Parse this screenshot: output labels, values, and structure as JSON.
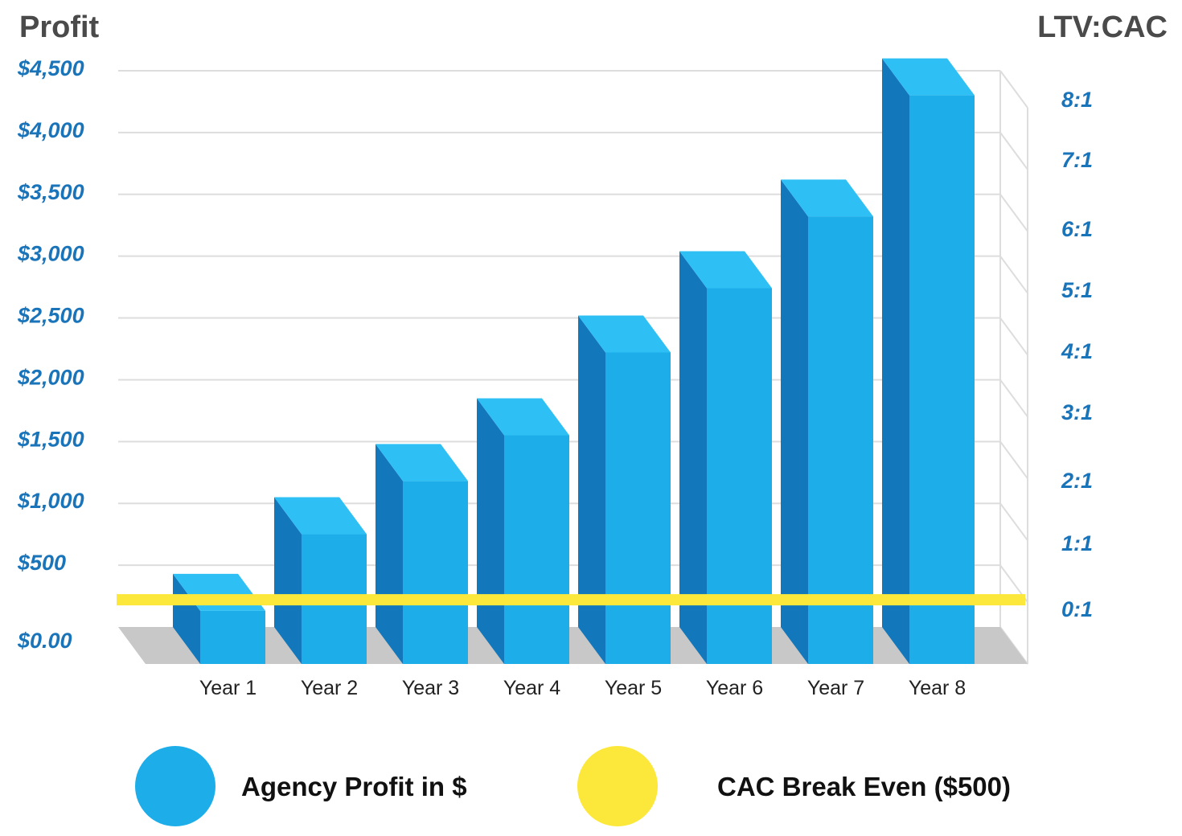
{
  "chart_data": {
    "type": "bar",
    "title_left": "Profit",
    "title_right": "LTV:CAC",
    "categories": [
      "Year 1",
      "Year 2",
      "Year 3",
      "Year 4",
      "Year 5",
      "Year 6",
      "Year 7",
      "Year 8"
    ],
    "series": [
      {
        "name": "Agency Profit in $",
        "values": [
          430,
          1050,
          1480,
          1850,
          2520,
          3040,
          3620,
          4600
        ]
      }
    ],
    "reference_line": {
      "name": "CAC Break Even ($500)",
      "value": 500
    },
    "y_left": {
      "ticks": [
        "$0.00",
        "$500",
        "$1,000",
        "$1,500",
        "$2,000",
        "$2,500",
        "$3,000",
        "$3,500",
        "$4,000",
        "$4,500"
      ],
      "ylim": [
        0,
        4500
      ]
    },
    "y_right": {
      "ticks": [
        "0:1",
        "1:1",
        "2:1",
        "3:1",
        "4:1",
        "5:1",
        "6:1",
        "7:1",
        "8:1"
      ]
    },
    "grid": true,
    "legend_position": "bottom",
    "colors": {
      "bar_front": "#1daeea",
      "bar_side": "#1277bb",
      "bar_top": "#2ec0f4",
      "floor": "#c8c8c8",
      "grid": "#dddddd",
      "break_even": "#fce83a"
    }
  },
  "legend": [
    {
      "label": "Agency Profit in $",
      "color": "#1daeea"
    },
    {
      "label": "CAC Break Even ($500)",
      "color": "#fce83a"
    }
  ]
}
